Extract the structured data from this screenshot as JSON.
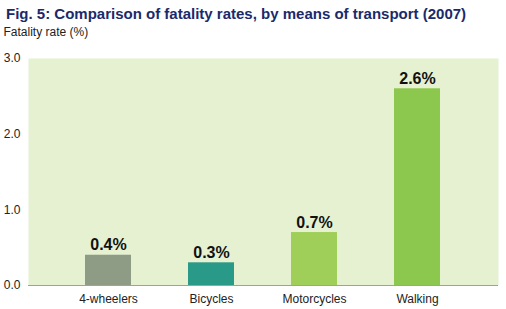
{
  "chart_data": {
    "type": "bar",
    "title": "Fig. 5: Comparison of fatality rates, by means of transport (2007)",
    "y_label": "Fatality rate (%)",
    "categories": [
      "4-wheelers",
      "Bicycles",
      "Motorcycles",
      "Walking"
    ],
    "values": [
      0.4,
      0.3,
      0.7,
      2.6
    ],
    "value_labels": [
      "0.4%",
      "0.3%",
      "0.7%",
      "2.6%"
    ],
    "colors": [
      "#8e9c86",
      "#2a9a88",
      "#9fcf58",
      "#8cc84e"
    ],
    "ylim": [
      0,
      3
    ],
    "yticks": [
      0,
      1,
      2,
      3
    ],
    "grid": false,
    "data_labels": true
  }
}
